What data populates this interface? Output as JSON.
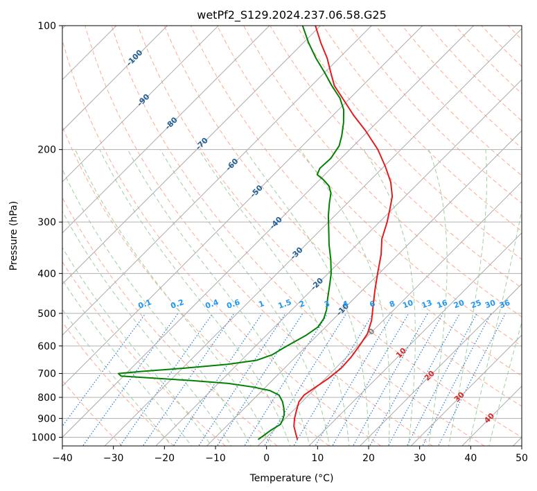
{
  "chart_data": {
    "type": "skewt",
    "title": "wetPf2_S129.2024.237.06.58.G25",
    "xlabel": "Temperature (°C)",
    "ylabel": "Pressure (hPa)",
    "xlim": [
      -40,
      50
    ],
    "ylim": [
      1050,
      100
    ],
    "x_ticks": [
      -40,
      -30,
      -20,
      -10,
      0,
      10,
      20,
      30,
      40,
      50
    ],
    "x_tick_labels": [
      "−40",
      "−30",
      "−20",
      "−10",
      "0",
      "10",
      "20",
      "30",
      "40",
      "50"
    ],
    "y_ticks": [
      100,
      200,
      300,
      400,
      500,
      600,
      700,
      800,
      900,
      1000
    ],
    "y_tick_labels": [
      "100",
      "200",
      "300",
      "400",
      "500",
      "600",
      "700",
      "800",
      "900",
      "1000"
    ],
    "y_scale": "log",
    "grid": "on",
    "series": [
      {
        "color": "#e41a1c",
        "values": [
          {
            "p": 1013,
            "t": 6.5
          },
          {
            "p": 975,
            "t": 4.8
          },
          {
            "p": 940,
            "t": 3.2
          },
          {
            "p": 900,
            "t": 1.8
          },
          {
            "p": 860,
            "t": 0.6
          },
          {
            "p": 820,
            "t": -0.6
          },
          {
            "p": 790,
            "t": -0.9
          },
          {
            "p": 760,
            "t": -0.3
          },
          {
            "p": 720,
            "t": 0.6
          },
          {
            "p": 680,
            "t": 1.1
          },
          {
            "p": 640,
            "t": 0.9
          },
          {
            "p": 600,
            "t": 0.3
          },
          {
            "p": 560,
            "t": -0.5
          },
          {
            "p": 520,
            "t": -2.3
          },
          {
            "p": 480,
            "t": -4.8
          },
          {
            "p": 440,
            "t": -7.5
          },
          {
            "p": 400,
            "t": -10.3
          },
          {
            "p": 360,
            "t": -13.3
          },
          {
            "p": 330,
            "t": -16.2
          },
          {
            "p": 300,
            "t": -18.5
          },
          {
            "p": 280,
            "t": -20.4
          },
          {
            "p": 260,
            "t": -22.5
          },
          {
            "p": 240,
            "t": -25.6
          },
          {
            "p": 220,
            "t": -29.7
          },
          {
            "p": 200,
            "t": -34.5
          },
          {
            "p": 180,
            "t": -40.6
          },
          {
            "p": 165,
            "t": -46.0
          },
          {
            "p": 150,
            "t": -51.5
          },
          {
            "p": 140,
            "t": -55.5
          },
          {
            "p": 130,
            "t": -58.8
          },
          {
            "p": 120,
            "t": -62.3
          },
          {
            "p": 110,
            "t": -66.6
          },
          {
            "p": 100,
            "t": -71.0
          }
        ]
      },
      {
        "color": "#008000",
        "values": [
          {
            "p": 1013,
            "t": -1.2
          },
          {
            "p": 990,
            "t": -0.9
          },
          {
            "p": 960,
            "t": -0.5
          },
          {
            "p": 930,
            "t": 0.2
          },
          {
            "p": 905,
            "t": -0.3
          },
          {
            "p": 880,
            "t": -1.0
          },
          {
            "p": 850,
            "t": -2.3
          },
          {
            "p": 820,
            "t": -3.8
          },
          {
            "p": 790,
            "t": -5.8
          },
          {
            "p": 770,
            "t": -8.5
          },
          {
            "p": 755,
            "t": -12.5
          },
          {
            "p": 740,
            "t": -18.0
          },
          {
            "p": 728,
            "t": -26.0
          },
          {
            "p": 718,
            "t": -34.0
          },
          {
            "p": 710,
            "t": -40.5
          },
          {
            "p": 700,
            "t": -41.5
          },
          {
            "p": 692,
            "t": -37.5
          },
          {
            "p": 680,
            "t": -30.0
          },
          {
            "p": 665,
            "t": -22.0
          },
          {
            "p": 650,
            "t": -17.0
          },
          {
            "p": 630,
            "t": -15.0
          },
          {
            "p": 610,
            "t": -14.3
          },
          {
            "p": 590,
            "t": -13.4
          },
          {
            "p": 565,
            "t": -12.2
          },
          {
            "p": 540,
            "t": -11.5
          },
          {
            "p": 515,
            "t": -12.0
          },
          {
            "p": 490,
            "t": -13.2
          },
          {
            "p": 460,
            "t": -15.2
          },
          {
            "p": 430,
            "t": -17.2
          },
          {
            "p": 400,
            "t": -19.4
          },
          {
            "p": 370,
            "t": -22.2
          },
          {
            "p": 340,
            "t": -25.5
          },
          {
            "p": 310,
            "t": -28.8
          },
          {
            "p": 290,
            "t": -31.2
          },
          {
            "p": 270,
            "t": -33.5
          },
          {
            "p": 255,
            "t": -35.2
          },
          {
            "p": 245,
            "t": -37.0
          },
          {
            "p": 237,
            "t": -39.2
          },
          {
            "p": 230,
            "t": -41.5
          },
          {
            "p": 222,
            "t": -42.2
          },
          {
            "p": 210,
            "t": -42.0
          },
          {
            "p": 196,
            "t": -42.8
          },
          {
            "p": 185,
            "t": -44.3
          },
          {
            "p": 172,
            "t": -46.5
          },
          {
            "p": 160,
            "t": -49.0
          },
          {
            "p": 150,
            "t": -52.0
          },
          {
            "p": 140,
            "t": -56.0
          },
          {
            "p": 130,
            "t": -60.0
          },
          {
            "p": 120,
            "t": -64.5
          },
          {
            "p": 110,
            "t": -69.0
          },
          {
            "p": 100,
            "t": -73.5
          }
        ]
      }
    ],
    "isotherm_labels": [
      "-100",
      "-90",
      "-80",
      "-70",
      "-60",
      "-50",
      "-40",
      "-30",
      "-20",
      "-10",
      "0",
      "10",
      "20",
      "30",
      "40"
    ],
    "mixing_ratio_labels": [
      "0.1",
      "0.2",
      "0.4",
      "0.6",
      "1",
      "1.5",
      "2",
      "3",
      "4",
      "6",
      "8",
      "10",
      "13",
      "16",
      "20",
      "25",
      "30",
      "36"
    ],
    "colors": {
      "temperature": "#e41a1c",
      "dewpoint": "#008000",
      "dry_adiabat": "#fcaa92",
      "moist_adiabat": "#9ecf9e",
      "mixing_ratio": "#1f77d4",
      "isotherm": "#aaaaaa",
      "isotherm_label_cold": "#1f5f96",
      "isotherm_label_warm": "#d62728",
      "isotherm_label_zero": "#7f7f7f",
      "mixing_label": "#2196f3"
    }
  }
}
